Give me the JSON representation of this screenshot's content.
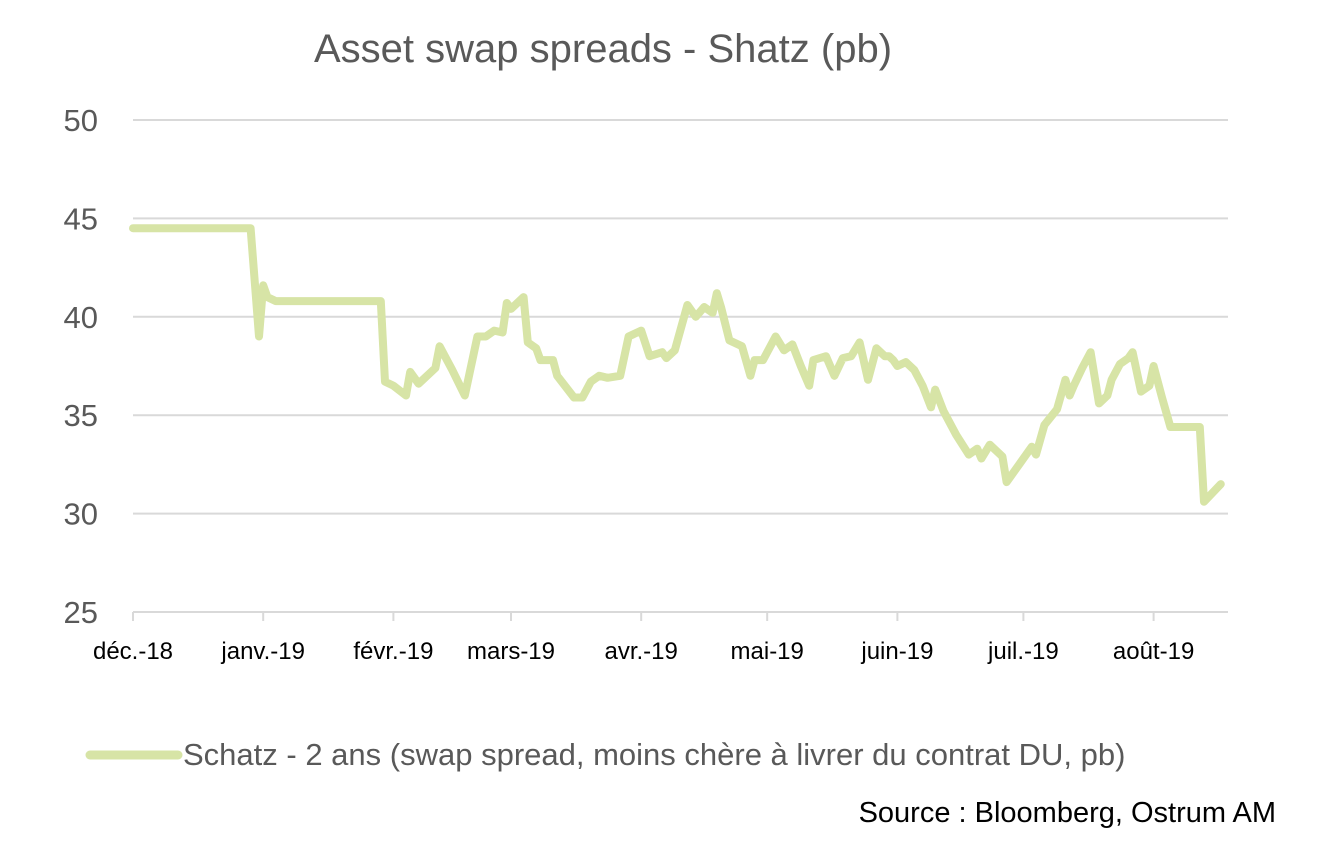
{
  "chart_data": {
    "type": "line",
    "title": "Asset swap spreads - Shatz (pb)",
    "xlabel": "",
    "ylabel": "",
    "ylim": [
      25,
      50
    ],
    "yticks": [
      50,
      45,
      40,
      35,
      30,
      25
    ],
    "x_ticks": [
      "déc.-18",
      "janv.-19",
      "févr.-19",
      "mars-19",
      "avr.-19",
      "mai-19",
      "juin-19",
      "juil.-19",
      "août-19"
    ],
    "grid": true,
    "legend_position": "bottom",
    "source": "Source : Bloomberg, Ostrum AM",
    "series": [
      {
        "name": "Schatz - 2 ans  (swap spread, moins chère à livrer du contrat DU, pb)",
        "color": "#d7e4a6",
        "x": [
          "2018-12-01",
          "2018-12-29",
          "2018-12-31",
          "2019-01-01",
          "2019-01-02",
          "2019-01-04",
          "2019-01-10",
          "2019-01-29",
          "2019-01-30",
          "2019-02-01",
          "2019-02-04",
          "2019-02-05",
          "2019-02-07",
          "2019-02-11",
          "2019-02-12",
          "2019-02-15",
          "2019-02-18",
          "2019-02-21",
          "2019-02-23",
          "2019-02-25",
          "2019-02-27",
          "2019-02-28",
          "2019-03-01",
          "2019-03-04",
          "2019-03-05",
          "2019-03-07",
          "2019-03-08",
          "2019-03-11",
          "2019-03-12",
          "2019-03-16",
          "2019-03-18",
          "2019-03-20",
          "2019-03-22",
          "2019-03-24",
          "2019-03-27",
          "2019-03-29",
          "2019-04-01",
          "2019-04-03",
          "2019-04-06",
          "2019-04-07",
          "2019-04-09",
          "2019-04-12",
          "2019-04-14",
          "2019-04-16",
          "2019-04-18",
          "2019-04-19",
          "2019-04-20",
          "2019-04-22",
          "2019-04-25",
          "2019-04-27",
          "2019-04-28",
          "2019-04-30",
          "2019-05-03",
          "2019-05-05",
          "2019-05-07",
          "2019-05-09",
          "2019-05-11",
          "2019-05-12",
          "2019-05-15",
          "2019-05-17",
          "2019-05-19",
          "2019-05-21",
          "2019-05-23",
          "2019-05-25",
          "2019-05-27",
          "2019-05-29",
          "2019-05-30",
          "2019-05-31",
          "2019-06-01",
          "2019-06-03",
          "2019-06-05",
          "2019-06-07",
          "2019-06-09",
          "2019-06-10",
          "2019-06-12",
          "2019-06-15",
          "2019-06-18",
          "2019-06-20",
          "2019-06-21",
          "2019-06-23",
          "2019-06-26",
          "2019-06-27",
          "2019-06-28",
          "2019-06-30",
          "2019-07-03",
          "2019-07-04",
          "2019-07-06",
          "2019-07-09",
          "2019-07-11",
          "2019-07-12",
          "2019-07-13",
          "2019-07-15",
          "2019-07-17",
          "2019-07-19",
          "2019-07-21",
          "2019-07-22",
          "2019-07-24",
          "2019-07-26",
          "2019-07-27",
          "2019-07-29",
          "2019-07-31",
          "2019-08-01",
          "2019-08-03",
          "2019-08-05",
          "2019-08-07",
          "2019-08-12",
          "2019-08-13",
          "2019-08-17"
        ],
        "values": [
          44.5,
          44.5,
          39,
          41.6,
          41,
          40.8,
          40.8,
          40.8,
          36.7,
          36.5,
          36,
          37.2,
          36.6,
          37.4,
          38.5,
          37.3,
          36,
          39,
          39,
          39.3,
          39.2,
          40.7,
          40.4,
          41,
          38.7,
          38.4,
          37.8,
          37.8,
          37,
          35.9,
          35.9,
          36.7,
          37,
          36.9,
          37,
          39,
          39.3,
          38,
          38.2,
          37.9,
          38.3,
          40.6,
          40,
          40.5,
          40.2,
          41.2,
          40.5,
          38.8,
          38.5,
          37,
          37.8,
          37.8,
          39,
          38.3,
          38.6,
          37.5,
          36.5,
          37.8,
          38,
          37,
          37.9,
          38,
          38.7,
          36.8,
          38.4,
          38,
          38,
          37.8,
          37.5,
          37.7,
          37.3,
          36.5,
          35.4,
          36.3,
          35.2,
          34,
          33,
          33.3,
          32.8,
          33.5,
          32.9,
          31.6,
          31.9,
          32.5,
          33.4,
          33,
          34.5,
          35.3,
          36.8,
          36,
          36.5,
          37.4,
          38.2,
          35.6,
          36,
          36.8,
          37.6,
          37.9,
          38.2,
          36.2,
          36.5,
          37.5,
          35.9,
          34.4,
          34.4,
          34.4,
          30.6,
          31.5
        ]
      }
    ]
  }
}
